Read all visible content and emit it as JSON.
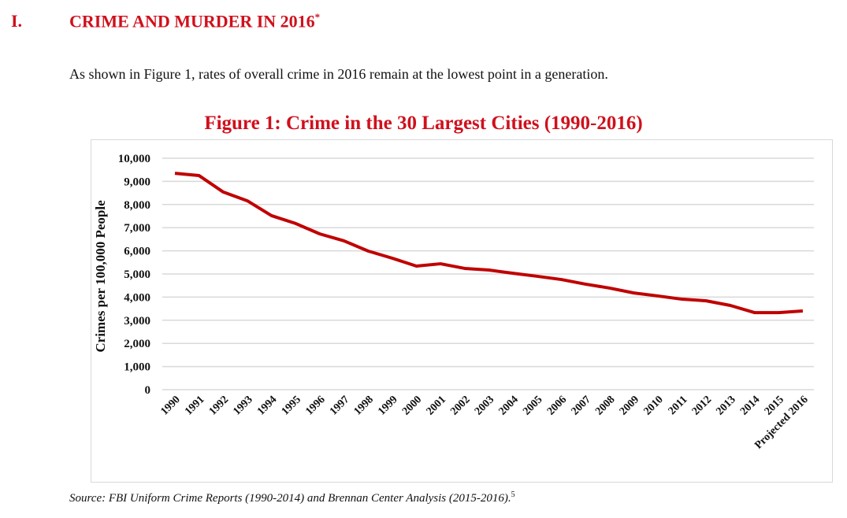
{
  "section": {
    "number": "I.",
    "title": "CRIME AND MURDER IN 2016",
    "footnote_mark": "*"
  },
  "intro": "As shown in Figure 1, rates of overall crime in 2016 remain at the lowest point in a generation.",
  "source": {
    "text": "Source: FBI Uniform Crime Reports (1990-2014) and Brennan Center Analysis (2015-2016).",
    "footnote": "5"
  },
  "chart_data": {
    "type": "line",
    "title": "Figure 1: Crime in the 30 Largest Cities (1990-2016)",
    "xlabel": "",
    "ylabel": "Crimes per 100,000 People",
    "ylim": [
      0,
      10000
    ],
    "yticks": [
      "0",
      "1,000",
      "2,000",
      "3,000",
      "4,000",
      "5,000",
      "6,000",
      "7,000",
      "8,000",
      "9,000",
      "10,000"
    ],
    "grid": true,
    "color": "#c00000",
    "categories": [
      "1990",
      "1991",
      "1992",
      "1993",
      "1994",
      "1995",
      "1996",
      "1997",
      "1998",
      "1999",
      "2000",
      "2001",
      "2002",
      "2003",
      "2004",
      "2005",
      "2006",
      "2007",
      "2008",
      "2009",
      "2010",
      "2011",
      "2012",
      "2013",
      "2014",
      "2015",
      "Projected 2016"
    ],
    "values": [
      9350,
      9250,
      8540,
      8160,
      7520,
      7180,
      6730,
      6430,
      5990,
      5680,
      5340,
      5440,
      5240,
      5170,
      5030,
      4900,
      4760,
      4560,
      4390,
      4180,
      4050,
      3910,
      3840,
      3640,
      3330,
      3330,
      3400
    ]
  }
}
